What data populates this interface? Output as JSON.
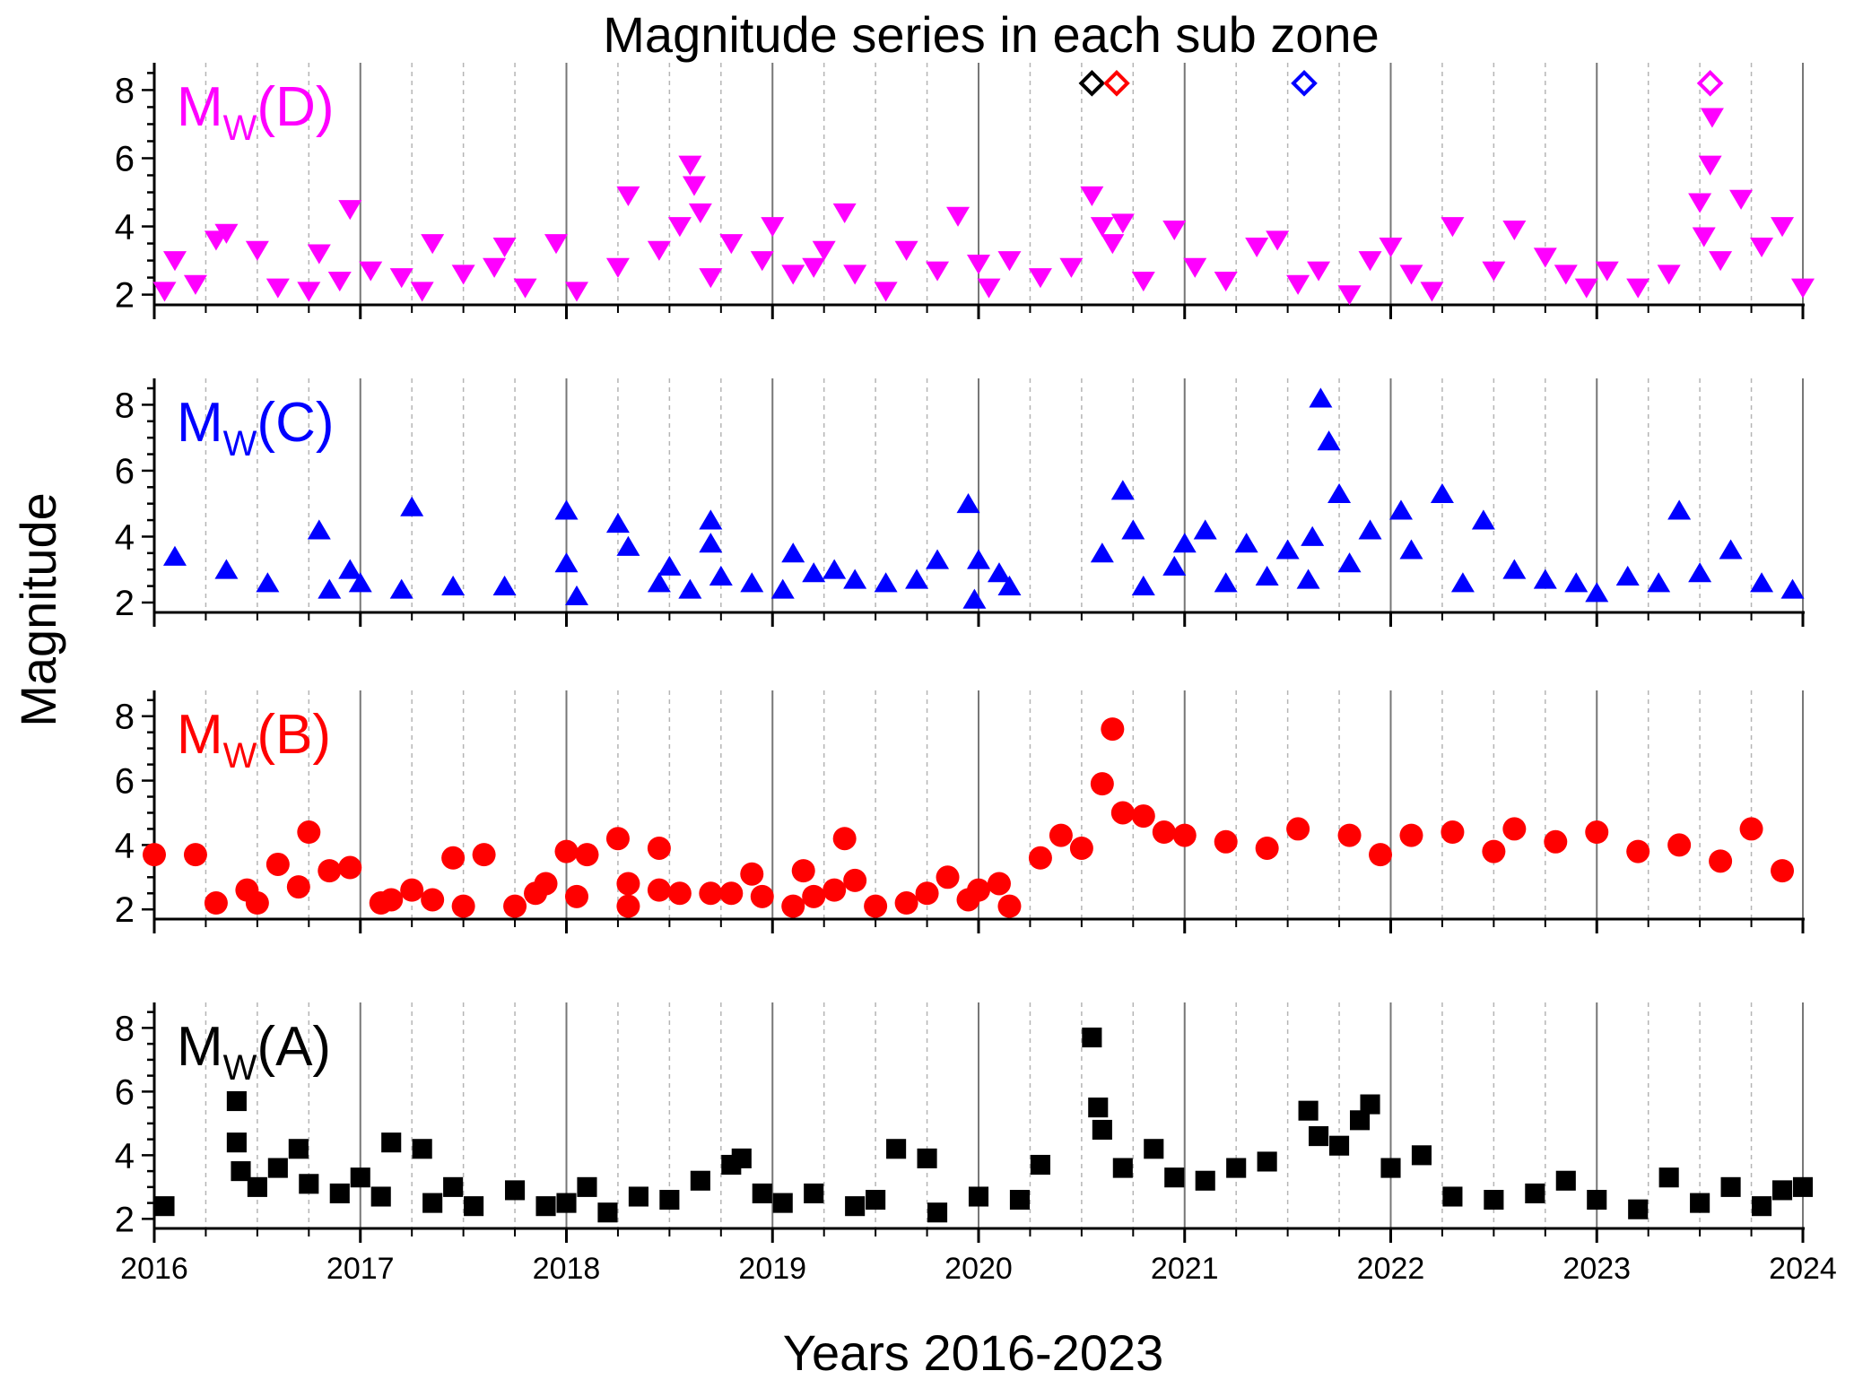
{
  "chart_data": {
    "type": "scatter",
    "title": "Magnitude series in each sub zone",
    "xlabel": "Years 2016-2023",
    "ylabel": "Magnitude",
    "xlim": [
      2016,
      2024
    ],
    "x_ticks": [
      "2016",
      "2017",
      "2018",
      "2019",
      "2020",
      "2021",
      "2022",
      "2023",
      "2024"
    ],
    "y_ticks": [
      "2",
      "4",
      "6",
      "8"
    ],
    "ylim": [
      1.7,
      8.8
    ],
    "panels": [
      {
        "id": "D",
        "label_main": "M",
        "label_sub": "W",
        "label_tail": "(D)",
        "color": "#ff00ff",
        "marker": "triangle-down",
        "points": [
          [
            2016.05,
            2.1
          ],
          [
            2016.1,
            3.0
          ],
          [
            2016.2,
            2.3
          ],
          [
            2016.3,
            3.6
          ],
          [
            2016.35,
            3.8
          ],
          [
            2016.5,
            3.3
          ],
          [
            2016.6,
            2.2
          ],
          [
            2016.75,
            2.1
          ],
          [
            2016.8,
            3.2
          ],
          [
            2016.9,
            2.4
          ],
          [
            2016.95,
            4.5
          ],
          [
            2017.05,
            2.7
          ],
          [
            2017.2,
            2.5
          ],
          [
            2017.3,
            2.1
          ],
          [
            2017.35,
            3.5
          ],
          [
            2017.5,
            2.6
          ],
          [
            2017.65,
            2.8
          ],
          [
            2017.7,
            3.4
          ],
          [
            2017.8,
            2.2
          ],
          [
            2017.95,
            3.5
          ],
          [
            2018.05,
            2.1
          ],
          [
            2018.25,
            2.8
          ],
          [
            2018.3,
            4.9
          ],
          [
            2018.45,
            3.3
          ],
          [
            2018.55,
            4.0
          ],
          [
            2018.6,
            5.8
          ],
          [
            2018.62,
            5.2
          ],
          [
            2018.65,
            4.4
          ],
          [
            2018.7,
            2.5
          ],
          [
            2018.8,
            3.5
          ],
          [
            2018.95,
            3.0
          ],
          [
            2019.0,
            4.0
          ],
          [
            2019.1,
            2.6
          ],
          [
            2019.2,
            2.8
          ],
          [
            2019.25,
            3.3
          ],
          [
            2019.35,
            4.4
          ],
          [
            2019.4,
            2.6
          ],
          [
            2019.55,
            2.1
          ],
          [
            2019.65,
            3.3
          ],
          [
            2019.8,
            2.7
          ],
          [
            2019.9,
            4.3
          ],
          [
            2020.0,
            2.9
          ],
          [
            2020.05,
            2.2
          ],
          [
            2020.15,
            3.0
          ],
          [
            2020.3,
            2.5
          ],
          [
            2020.45,
            2.8
          ],
          [
            2020.55,
            4.9
          ],
          [
            2020.6,
            4.0
          ],
          [
            2020.65,
            3.5
          ],
          [
            2020.7,
            4.1
          ],
          [
            2020.8,
            2.4
          ],
          [
            2020.95,
            3.9
          ],
          [
            2021.05,
            2.8
          ],
          [
            2021.2,
            2.4
          ],
          [
            2021.35,
            3.4
          ],
          [
            2021.45,
            3.6
          ],
          [
            2021.55,
            2.3
          ],
          [
            2021.65,
            2.7
          ],
          [
            2021.8,
            2.0
          ],
          [
            2021.9,
            3.0
          ],
          [
            2022.0,
            3.4
          ],
          [
            2022.1,
            2.6
          ],
          [
            2022.2,
            2.1
          ],
          [
            2022.3,
            4.0
          ],
          [
            2022.5,
            2.7
          ],
          [
            2022.6,
            3.9
          ],
          [
            2022.75,
            3.1
          ],
          [
            2022.85,
            2.6
          ],
          [
            2022.95,
            2.2
          ],
          [
            2023.05,
            2.7
          ],
          [
            2023.2,
            2.2
          ],
          [
            2023.35,
            2.6
          ],
          [
            2023.5,
            4.7
          ],
          [
            2023.52,
            3.7
          ],
          [
            2023.55,
            5.8
          ],
          [
            2023.56,
            7.2
          ],
          [
            2023.6,
            3.0
          ],
          [
            2023.7,
            4.8
          ],
          [
            2023.8,
            3.4
          ],
          [
            2023.9,
            4.0
          ],
          [
            2024.0,
            2.2
          ]
        ],
        "highlight_points": [
          {
            "x": 2020.55,
            "y": 8.2,
            "color": "#000000"
          },
          {
            "x": 2020.67,
            "y": 8.2,
            "color": "#ff0000"
          },
          {
            "x": 2021.58,
            "y": 8.2,
            "color": "#0000ff"
          },
          {
            "x": 2023.55,
            "y": 8.2,
            "color": "#ff00ff"
          }
        ]
      },
      {
        "id": "C",
        "label_main": "M",
        "label_sub": "W",
        "label_tail": "(C)",
        "color": "#0000ff",
        "marker": "triangle-up",
        "points": [
          [
            2016.1,
            3.4
          ],
          [
            2016.35,
            3.0
          ],
          [
            2016.55,
            2.6
          ],
          [
            2016.8,
            4.2
          ],
          [
            2016.85,
            2.4
          ],
          [
            2016.95,
            3.0
          ],
          [
            2017.0,
            2.6
          ],
          [
            2017.2,
            2.4
          ],
          [
            2017.25,
            4.9
          ],
          [
            2017.45,
            2.5
          ],
          [
            2017.7,
            2.5
          ],
          [
            2018.0,
            4.8
          ],
          [
            2018.0,
            3.2
          ],
          [
            2018.05,
            2.2
          ],
          [
            2018.25,
            4.4
          ],
          [
            2018.3,
            3.7
          ],
          [
            2018.45,
            2.6
          ],
          [
            2018.5,
            3.1
          ],
          [
            2018.6,
            2.4
          ],
          [
            2018.7,
            4.5
          ],
          [
            2018.7,
            3.8
          ],
          [
            2018.75,
            2.8
          ],
          [
            2018.9,
            2.6
          ],
          [
            2019.05,
            2.4
          ],
          [
            2019.1,
            3.5
          ],
          [
            2019.2,
            2.9
          ],
          [
            2019.3,
            3.0
          ],
          [
            2019.4,
            2.7
          ],
          [
            2019.55,
            2.6
          ],
          [
            2019.7,
            2.7
          ],
          [
            2019.8,
            3.3
          ],
          [
            2019.95,
            5.0
          ],
          [
            2019.98,
            2.1
          ],
          [
            2020.0,
            3.3
          ],
          [
            2020.1,
            2.9
          ],
          [
            2020.15,
            2.5
          ],
          [
            2020.6,
            3.5
          ],
          [
            2020.7,
            5.4
          ],
          [
            2020.75,
            4.2
          ],
          [
            2020.8,
            2.5
          ],
          [
            2020.95,
            3.1
          ],
          [
            2021.0,
            3.8
          ],
          [
            2021.1,
            4.2
          ],
          [
            2021.2,
            2.6
          ],
          [
            2021.3,
            3.8
          ],
          [
            2021.4,
            2.8
          ],
          [
            2021.5,
            3.6
          ],
          [
            2021.6,
            2.7
          ],
          [
            2021.62,
            4.0
          ],
          [
            2021.66,
            8.2
          ],
          [
            2021.7,
            6.9
          ],
          [
            2021.75,
            5.3
          ],
          [
            2021.8,
            3.2
          ],
          [
            2021.9,
            4.2
          ],
          [
            2022.05,
            4.8
          ],
          [
            2022.1,
            3.6
          ],
          [
            2022.25,
            5.3
          ],
          [
            2022.35,
            2.6
          ],
          [
            2022.45,
            4.5
          ],
          [
            2022.6,
            3.0
          ],
          [
            2022.75,
            2.7
          ],
          [
            2022.9,
            2.6
          ],
          [
            2023.0,
            2.3
          ],
          [
            2023.15,
            2.8
          ],
          [
            2023.3,
            2.6
          ],
          [
            2023.4,
            4.8
          ],
          [
            2023.5,
            2.9
          ],
          [
            2023.65,
            3.6
          ],
          [
            2023.8,
            2.6
          ],
          [
            2023.95,
            2.4
          ]
        ]
      },
      {
        "id": "B",
        "label_main": "M",
        "label_sub": "W",
        "label_tail": "(B)",
        "color": "#ff0000",
        "marker": "circle",
        "points": [
          [
            2016.0,
            3.7
          ],
          [
            2016.2,
            3.7
          ],
          [
            2016.3,
            2.2
          ],
          [
            2016.45,
            2.6
          ],
          [
            2016.5,
            2.2
          ],
          [
            2016.6,
            3.4
          ],
          [
            2016.7,
            2.7
          ],
          [
            2016.75,
            4.4
          ],
          [
            2016.85,
            3.2
          ],
          [
            2016.95,
            3.3
          ],
          [
            2017.1,
            2.2
          ],
          [
            2017.15,
            2.3
          ],
          [
            2017.25,
            2.6
          ],
          [
            2017.35,
            2.3
          ],
          [
            2017.45,
            3.6
          ],
          [
            2017.5,
            2.1
          ],
          [
            2017.6,
            3.7
          ],
          [
            2017.75,
            2.1
          ],
          [
            2017.85,
            2.5
          ],
          [
            2017.9,
            2.8
          ],
          [
            2018.0,
            3.8
          ],
          [
            2018.1,
            3.7
          ],
          [
            2018.05,
            2.4
          ],
          [
            2018.25,
            4.2
          ],
          [
            2018.3,
            2.8
          ],
          [
            2018.3,
            2.1
          ],
          [
            2018.45,
            3.9
          ],
          [
            2018.45,
            2.6
          ],
          [
            2018.55,
            2.5
          ],
          [
            2018.7,
            2.5
          ],
          [
            2018.8,
            2.5
          ],
          [
            2018.9,
            3.1
          ],
          [
            2018.95,
            2.4
          ],
          [
            2019.1,
            2.1
          ],
          [
            2019.15,
            3.2
          ],
          [
            2019.2,
            2.4
          ],
          [
            2019.3,
            2.6
          ],
          [
            2019.35,
            4.2
          ],
          [
            2019.4,
            2.9
          ],
          [
            2019.5,
            2.1
          ],
          [
            2019.65,
            2.2
          ],
          [
            2019.75,
            2.5
          ],
          [
            2019.85,
            3.0
          ],
          [
            2019.95,
            2.3
          ],
          [
            2020.0,
            2.6
          ],
          [
            2020.1,
            2.8
          ],
          [
            2020.15,
            2.1
          ],
          [
            2020.3,
            3.6
          ],
          [
            2020.4,
            4.3
          ],
          [
            2020.5,
            3.9
          ],
          [
            2020.6,
            5.9
          ],
          [
            2020.65,
            7.6
          ],
          [
            2020.7,
            5.0
          ],
          [
            2020.8,
            4.9
          ],
          [
            2020.9,
            4.4
          ],
          [
            2021.0,
            4.3
          ],
          [
            2021.2,
            4.1
          ],
          [
            2021.4,
            3.9
          ],
          [
            2021.55,
            4.5
          ],
          [
            2021.8,
            4.3
          ],
          [
            2021.95,
            3.7
          ],
          [
            2022.1,
            4.3
          ],
          [
            2022.3,
            4.4
          ],
          [
            2022.5,
            3.8
          ],
          [
            2022.6,
            4.5
          ],
          [
            2022.8,
            4.1
          ],
          [
            2023.0,
            4.4
          ],
          [
            2023.2,
            3.8
          ],
          [
            2023.4,
            4.0
          ],
          [
            2023.6,
            3.5
          ],
          [
            2023.75,
            4.5
          ],
          [
            2023.9,
            3.2
          ]
        ]
      },
      {
        "id": "A",
        "label_main": "M",
        "label_sub": "W",
        "label_tail": "(A)",
        "color": "#000000",
        "marker": "square",
        "points": [
          [
            2016.05,
            2.4
          ],
          [
            2016.4,
            5.7
          ],
          [
            2016.4,
            4.4
          ],
          [
            2016.42,
            3.5
          ],
          [
            2016.5,
            3.0
          ],
          [
            2016.6,
            3.6
          ],
          [
            2016.7,
            4.2
          ],
          [
            2016.75,
            3.1
          ],
          [
            2016.9,
            2.8
          ],
          [
            2017.0,
            3.3
          ],
          [
            2017.1,
            2.7
          ],
          [
            2017.15,
            4.4
          ],
          [
            2017.3,
            4.2
          ],
          [
            2017.35,
            2.5
          ],
          [
            2017.45,
            3.0
          ],
          [
            2017.55,
            2.4
          ],
          [
            2017.75,
            2.9
          ],
          [
            2017.9,
            2.4
          ],
          [
            2018.0,
            2.5
          ],
          [
            2018.1,
            3.0
          ],
          [
            2018.2,
            2.2
          ],
          [
            2018.35,
            2.7
          ],
          [
            2018.5,
            2.6
          ],
          [
            2018.65,
            3.2
          ],
          [
            2018.8,
            3.7
          ],
          [
            2018.85,
            3.9
          ],
          [
            2018.95,
            2.8
          ],
          [
            2019.05,
            2.5
          ],
          [
            2019.2,
            2.8
          ],
          [
            2019.4,
            2.4
          ],
          [
            2019.5,
            2.6
          ],
          [
            2019.6,
            4.2
          ],
          [
            2019.75,
            3.9
          ],
          [
            2019.8,
            2.2
          ],
          [
            2020.0,
            2.7
          ],
          [
            2020.2,
            2.6
          ],
          [
            2020.3,
            3.7
          ],
          [
            2020.55,
            7.7
          ],
          [
            2020.58,
            5.5
          ],
          [
            2020.6,
            4.8
          ],
          [
            2020.7,
            3.6
          ],
          [
            2020.85,
            4.2
          ],
          [
            2020.95,
            3.3
          ],
          [
            2021.1,
            3.2
          ],
          [
            2021.25,
            3.6
          ],
          [
            2021.4,
            3.8
          ],
          [
            2021.6,
            5.4
          ],
          [
            2021.65,
            4.6
          ],
          [
            2021.75,
            4.3
          ],
          [
            2021.9,
            5.6
          ],
          [
            2021.85,
            5.1
          ],
          [
            2022.0,
            3.6
          ],
          [
            2022.15,
            4.0
          ],
          [
            2022.3,
            2.7
          ],
          [
            2022.5,
            2.6
          ],
          [
            2022.7,
            2.8
          ],
          [
            2022.85,
            3.2
          ],
          [
            2023.0,
            2.6
          ],
          [
            2023.2,
            2.3
          ],
          [
            2023.35,
            3.3
          ],
          [
            2023.5,
            2.5
          ],
          [
            2023.65,
            3.0
          ],
          [
            2023.8,
            2.4
          ],
          [
            2023.9,
            2.9
          ],
          [
            2024.0,
            3.0
          ]
        ]
      }
    ]
  }
}
